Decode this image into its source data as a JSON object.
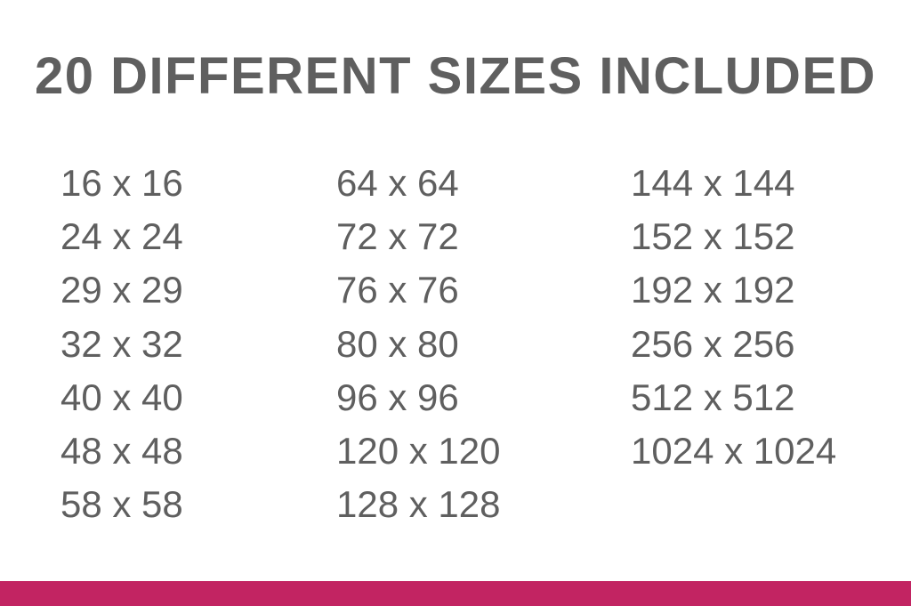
{
  "title": "20 DIFFERENT SIZES INCLUDED",
  "columns": [
    [
      "16 x 16",
      "24 x 24",
      "29 x 29",
      "32 x 32",
      "40 x 40",
      "48 x 48",
      "58 x 58"
    ],
    [
      "64 x 64",
      "72 x 72",
      "76 x 76",
      "80 x 80",
      "96 x 96",
      "120 x 120",
      "128 x 128"
    ],
    [
      "144 x 144",
      "152 x 152",
      "192 x 192",
      "256 x 256",
      "512 x 512",
      "1024 x 1024"
    ]
  ],
  "colors": {
    "text": "#5f5f5f",
    "accent_bar": "#c22462",
    "background": "#ffffff"
  }
}
